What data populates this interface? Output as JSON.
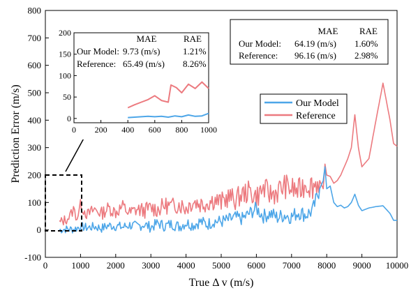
{
  "chart_data": {
    "type": "line",
    "title": "",
    "xlabel": "True Δ v (m/s)",
    "ylabel": "Prediction Error (m/s)",
    "xlim": [
      0,
      10000
    ],
    "ylim": [
      -100,
      800
    ],
    "xticks": [
      0,
      1000,
      2000,
      3000,
      4000,
      5000,
      6000,
      7000,
      8000,
      9000,
      10000
    ],
    "yticks": [
      -100,
      0,
      100,
      200,
      300,
      400,
      500,
      600,
      700,
      800
    ],
    "grid": false,
    "legend_position": "center-right",
    "colors": {
      "Our Model": "#4da6e8",
      "Reference": "#ec7a7f"
    },
    "series": [
      {
        "name": "Our Model",
        "x": [
          400,
          600,
          800,
          1000,
          1200,
          1400,
          1600,
          1800,
          2000,
          2200,
          2400,
          2600,
          2800,
          3000,
          3200,
          3400,
          3600,
          3800,
          4000,
          4200,
          4400,
          4600,
          4800,
          5000,
          5200,
          5400,
          5600,
          5800,
          6000,
          6200,
          6400,
          6600,
          6800,
          7000,
          7200,
          7400,
          7600,
          7800,
          7900,
          7950,
          8000,
          8100,
          8200,
          8300,
          8400,
          8500,
          8600,
          8700,
          8800,
          8900,
          9000,
          9200,
          9400,
          9600,
          9800,
          9900,
          10000
        ],
        "values": [
          0,
          3,
          2,
          12,
          8,
          12,
          6,
          16,
          14,
          10,
          18,
          12,
          20,
          10,
          24,
          14,
          22,
          12,
          26,
          18,
          30,
          20,
          32,
          30,
          36,
          45,
          40,
          60,
          78,
          50,
          60,
          45,
          55,
          48,
          65,
          55,
          70,
          150,
          180,
          230,
          150,
          160,
          100,
          85,
          90,
          80,
          85,
          100,
          130,
          90,
          70,
          80,
          85,
          88,
          60,
          35,
          35
        ]
      },
      {
        "name": "Reference",
        "x": [
          400,
          600,
          700,
          800,
          900,
          1000,
          1200,
          1400,
          1600,
          1800,
          2000,
          2200,
          2400,
          2600,
          2800,
          3000,
          3200,
          3400,
          3600,
          3800,
          4000,
          4200,
          4400,
          4600,
          4800,
          5000,
          5200,
          5400,
          5600,
          5800,
          6000,
          6200,
          6400,
          6600,
          6800,
          7000,
          7200,
          7400,
          7600,
          7800,
          7900,
          7950,
          8000,
          8100,
          8200,
          8300,
          8400,
          8500,
          8600,
          8700,
          8800,
          8900,
          9000,
          9200,
          9400,
          9600,
          9800,
          9900,
          10000
        ],
        "values": [
          25,
          40,
          50,
          75,
          45,
          90,
          55,
          75,
          60,
          80,
          65,
          85,
          60,
          75,
          70,
          80,
          75,
          90,
          85,
          95,
          80,
          105,
          95,
          100,
          110,
          100,
          120,
          110,
          130,
          140,
          120,
          150,
          130,
          140,
          160,
          150,
          140,
          170,
          160,
          180,
          150,
          240,
          200,
          195,
          170,
          180,
          200,
          230,
          260,
          300,
          420,
          300,
          230,
          260,
          400,
          535,
          400,
          315,
          305
        ]
      }
    ],
    "inset": {
      "xlim": [
        0,
        1000
      ],
      "ylim": [
        -10,
        200
      ],
      "xticks": [
        0,
        200,
        400,
        600,
        800,
        1000
      ],
      "yticks": [
        0,
        50,
        100,
        150,
        200
      ],
      "series": [
        {
          "name": "Our Model",
          "x": [
            400,
            450,
            500,
            550,
            600,
            650,
            700,
            750,
            800,
            850,
            900,
            950,
            1000
          ],
          "values": [
            2,
            3,
            4,
            5,
            4,
            5,
            3,
            6,
            4,
            8,
            5,
            6,
            12
          ]
        },
        {
          "name": "Reference",
          "x": [
            400,
            450,
            500,
            550,
            600,
            650,
            700,
            720,
            760,
            800,
            850,
            900,
            950,
            1000
          ],
          "values": [
            25,
            32,
            38,
            44,
            53,
            42,
            38,
            78,
            72,
            60,
            80,
            70,
            85,
            70
          ]
        }
      ],
      "table": {
        "col_headers": [
          "",
          "MAE",
          "RAE"
        ],
        "rows": [
          [
            "Our Model:",
            "9.73 (m/s)",
            "1.21%"
          ],
          [
            "Reference:",
            "65.49 (m/s)",
            "8.26%"
          ]
        ]
      }
    },
    "main_table": {
      "col_headers": [
        "",
        "MAE",
        "RAE"
      ],
      "rows": [
        [
          "Our Model:",
          "64.19 (m/s)",
          "1.60%"
        ],
        [
          "Reference:",
          "96.16 (m/s)",
          "2.98%"
        ]
      ]
    }
  }
}
